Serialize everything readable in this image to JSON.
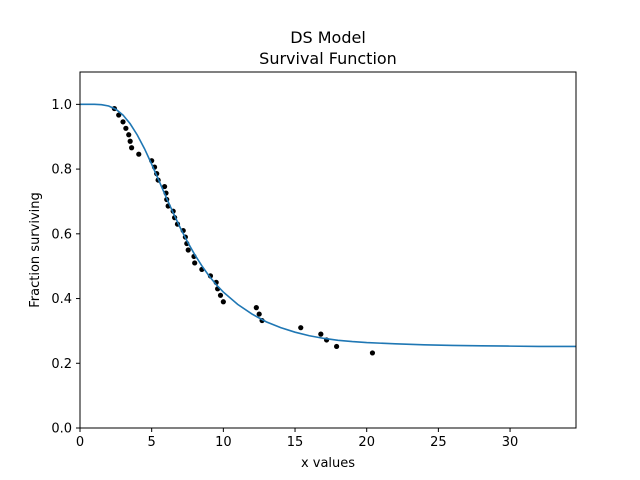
{
  "chart_data": {
    "type": "scatter",
    "title": "DS Model",
    "subtitle": "Survival Function",
    "xlabel": "x values",
    "ylabel": "Fraction surviving",
    "xlim": [
      0,
      34.6
    ],
    "ylim": [
      0,
      1.1
    ],
    "xticks": [
      0,
      5,
      10,
      15,
      20,
      25,
      30
    ],
    "yticks": [
      0.0,
      0.2,
      0.4,
      0.6,
      0.8,
      1.0
    ],
    "xtick_labels": [
      "0",
      "5",
      "10",
      "15",
      "20",
      "25",
      "30"
    ],
    "ytick_labels": [
      "0.0",
      "0.2",
      "0.4",
      "0.6",
      "0.8",
      "1.0"
    ],
    "grid": false,
    "series": [
      {
        "kind": "points",
        "color": "#000000",
        "points": [
          [
            2.4,
            0.987
          ],
          [
            2.7,
            0.967
          ],
          [
            3.0,
            0.946
          ],
          [
            3.2,
            0.926
          ],
          [
            3.4,
            0.906
          ],
          [
            3.5,
            0.886
          ],
          [
            3.6,
            0.866
          ],
          [
            4.1,
            0.846
          ],
          [
            5.0,
            0.826
          ],
          [
            5.2,
            0.806
          ],
          [
            5.35,
            0.786
          ],
          [
            5.45,
            0.766
          ],
          [
            5.9,
            0.746
          ],
          [
            6.0,
            0.726
          ],
          [
            6.05,
            0.706
          ],
          [
            6.15,
            0.686
          ],
          [
            6.5,
            0.67
          ],
          [
            6.6,
            0.65
          ],
          [
            6.8,
            0.63
          ],
          [
            7.2,
            0.61
          ],
          [
            7.35,
            0.59
          ],
          [
            7.45,
            0.57
          ],
          [
            7.55,
            0.55
          ],
          [
            7.95,
            0.53
          ],
          [
            8.0,
            0.51
          ],
          [
            8.5,
            0.49
          ],
          [
            9.1,
            0.47
          ],
          [
            9.5,
            0.45
          ],
          [
            9.6,
            0.43
          ],
          [
            9.8,
            0.41
          ],
          [
            10.0,
            0.39
          ],
          [
            12.3,
            0.372
          ],
          [
            12.5,
            0.352
          ],
          [
            12.7,
            0.332
          ],
          [
            15.4,
            0.31
          ],
          [
            16.8,
            0.29
          ],
          [
            17.2,
            0.272
          ],
          [
            17.9,
            0.252
          ],
          [
            20.4,
            0.232
          ]
        ]
      },
      {
        "kind": "line",
        "color": "#1f77b4",
        "x": [
          0,
          1,
          1.5,
          2,
          2.5,
          3,
          3.5,
          4,
          4.5,
          5,
          5.5,
          6,
          6.5,
          7,
          7.5,
          8,
          8.5,
          9,
          9.5,
          10,
          11,
          12,
          13,
          14,
          15,
          16,
          17,
          18,
          19,
          20,
          22,
          24,
          26,
          28,
          30,
          32,
          34.6
        ],
        "y": [
          1.0,
          1.0,
          0.999,
          0.995,
          0.985,
          0.967,
          0.94,
          0.905,
          0.863,
          0.815,
          0.765,
          0.714,
          0.665,
          0.618,
          0.575,
          0.536,
          0.501,
          0.47,
          0.443,
          0.42,
          0.382,
          0.352,
          0.328,
          0.31,
          0.296,
          0.285,
          0.277,
          0.271,
          0.267,
          0.264,
          0.26,
          0.257,
          0.255,
          0.254,
          0.253,
          0.252,
          0.252
        ]
      }
    ]
  }
}
